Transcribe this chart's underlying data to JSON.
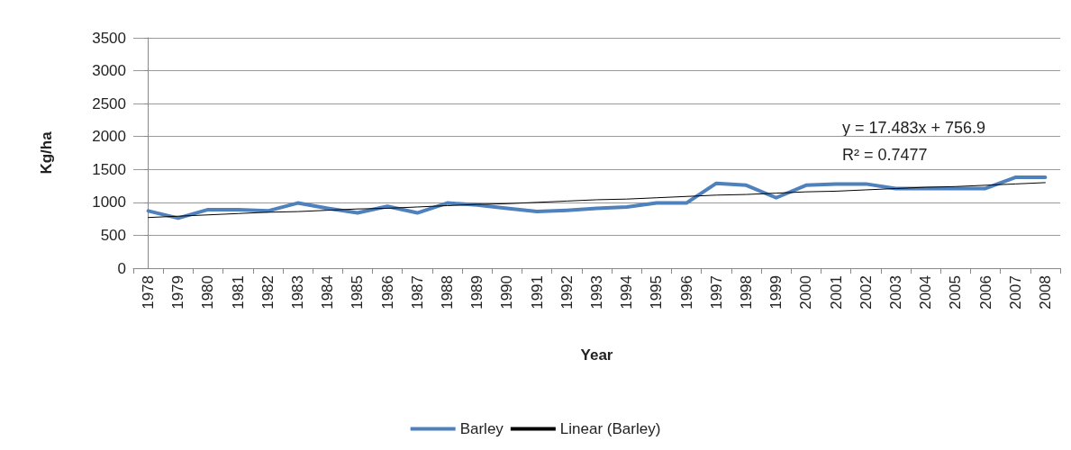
{
  "chart_data": {
    "type": "line",
    "xlabel": "Year",
    "ylabel": "Kg/ha",
    "categories": [
      "1978",
      "1979",
      "1980",
      "1981",
      "1982",
      "1983",
      "1984",
      "1985",
      "1986",
      "1987",
      "1988",
      "1989",
      "1990",
      "1991",
      "1992",
      "1993",
      "1994",
      "1995",
      "1996",
      "1997",
      "1998",
      "1999",
      "2000",
      "2001",
      "2002",
      "2003",
      "2004",
      "2005",
      "2006",
      "2007",
      "2008"
    ],
    "series": [
      {
        "name": "Barley",
        "color": "#4f81bd",
        "values": [
          870,
          760,
          890,
          890,
          870,
          990,
          910,
          840,
          940,
          840,
          990,
          960,
          910,
          860,
          880,
          910,
          930,
          990,
          990,
          1290,
          1260,
          1070,
          1260,
          1280,
          1280,
          1210,
          1210,
          1210,
          1210,
          1380,
          1380
        ]
      },
      {
        "name": "Linear (Barley)",
        "color": "#000000",
        "values": [
          770,
          790,
          810,
          830,
          850,
          860,
          880,
          900,
          910,
          930,
          950,
          970,
          980,
          1000,
          1020,
          1040,
          1050,
          1070,
          1090,
          1110,
          1120,
          1140,
          1160,
          1170,
          1190,
          1210,
          1230,
          1240,
          1260,
          1280,
          1300
        ]
      }
    ],
    "ylim": [
      0,
      3500
    ],
    "yticks": [
      0,
      500,
      1000,
      1500,
      2000,
      2500,
      3000,
      3500
    ],
    "grid": "y",
    "legend": "bottom",
    "marker": "none",
    "annotations": [
      "y = 17.483x + 756.9",
      "R² = 0.7477"
    ]
  }
}
